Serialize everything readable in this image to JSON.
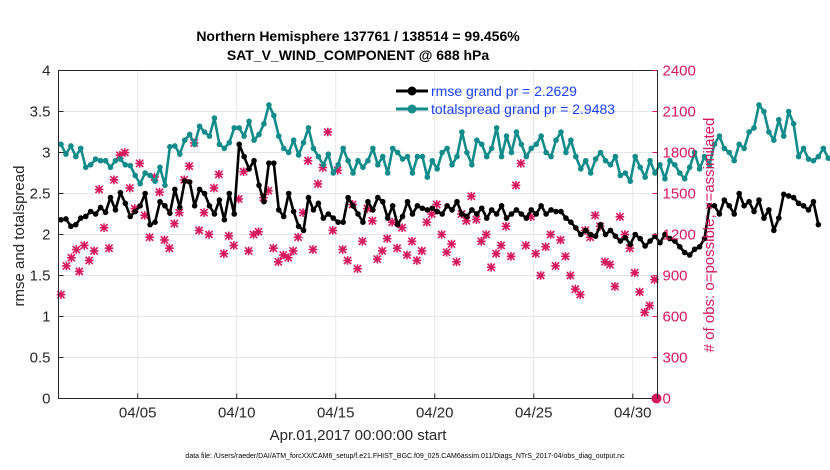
{
  "chart_data": {
    "type": "line",
    "title_line1": "Northern Hemisphere 137761 / 138514 = 99.456%",
    "title_line2": "SAT_V_WIND_COMPONENT @ 688 hPa",
    "xlabel": "Apr.01,2017 00:00:00 start",
    "ylabel_left": "rmse and totalspread",
    "ylabel_right": "# of obs: o=possible; ×=assimilated",
    "footer": "data file: /Users/raeder/DAI/ATM_forcXX/CAM6_setup/f.e21.FHIST_BGC.f09_025.CAM6assim.011/Diags_NTrS_2017-04/obs_diag_output.nc",
    "xlim": [
      1.0,
      31.25
    ],
    "ylim_left": [
      0,
      4
    ],
    "ylim_right": [
      0,
      2400
    ],
    "x_ticks": [
      5,
      10,
      15,
      20,
      25,
      30
    ],
    "x_tick_labels": [
      "04/05",
      "04/10",
      "04/15",
      "04/20",
      "04/25",
      "04/30"
    ],
    "y_ticks_left": [
      0,
      0.5,
      1,
      1.5,
      2,
      2.5,
      3,
      3.5,
      4
    ],
    "y_tick_labels_left": [
      "0",
      "0.5",
      "1",
      "1.5",
      "2",
      "2.5",
      "3",
      "3.5",
      "4"
    ],
    "y_ticks_right": [
      0,
      300,
      600,
      900,
      1200,
      1500,
      1800,
      2100,
      2400
    ],
    "y_tick_labels_right": [
      "0",
      "300",
      "600",
      "900",
      "1200",
      "1500",
      "1800",
      "2100",
      "2400"
    ],
    "grid": true,
    "legend_position": "top-right",
    "x_start": 1.125,
    "x_step": 0.25,
    "series": [
      {
        "name": "rmse grand pr = 2.2629",
        "color": "#000000",
        "axis": "left",
        "values": [
          2.18,
          2.19,
          2.1,
          2.12,
          2.2,
          2.22,
          2.28,
          2.25,
          2.33,
          2.27,
          2.45,
          2.3,
          2.51,
          2.38,
          2.22,
          2.28,
          2.35,
          2.5,
          2.12,
          2.15,
          2.4,
          2.35,
          2.26,
          2.55,
          2.33,
          2.65,
          2.64,
          2.35,
          2.55,
          2.5,
          2.35,
          2.25,
          2.42,
          2.18,
          2.5,
          2.25,
          3.1,
          2.95,
          2.8,
          2.9,
          2.6,
          2.4,
          2.87,
          2.87,
          2.3,
          2.22,
          2.5,
          2.28,
          2.1,
          2.05,
          2.45,
          2.3,
          2.38,
          2.2,
          2.25,
          2.2,
          2.15,
          2.15,
          2.45,
          2.35,
          2.25,
          2.15,
          2.4,
          2.3,
          2.45,
          2.4,
          2.2,
          2.35,
          2.12,
          2.22,
          2.4,
          2.25,
          2.35,
          2.32,
          2.3,
          2.32,
          2.28,
          2.25,
          2.35,
          2.3,
          2.4,
          2.25,
          2.22,
          2.3,
          2.25,
          2.32,
          2.2,
          2.3,
          2.25,
          2.35,
          2.2,
          2.25,
          2.3,
          2.25,
          2.2,
          2.3,
          2.25,
          2.35,
          2.25,
          2.3,
          2.28,
          2.28,
          2.2,
          2.15,
          2.08,
          2.0,
          2.05,
          2.0,
          1.98,
          2.12,
          2.0,
          2.05,
          1.98,
          1.92,
          1.96,
          1.88,
          2.0,
          1.95,
          1.86,
          1.92,
          1.98,
          1.9,
          2.0,
          1.95,
          1.92,
          1.85,
          1.78,
          1.75,
          1.82,
          1.85,
          1.95,
          2.35,
          2.35,
          2.25,
          2.42,
          2.35,
          2.25,
          2.5,
          2.35,
          2.4,
          2.28,
          2.42,
          2.2,
          2.3,
          2.05,
          2.2,
          2.49,
          2.47,
          2.45,
          2.38,
          2.35,
          2.3,
          2.4,
          2.12
        ]
      },
      {
        "name": "totalspread grand pr = 2.9483",
        "color": "#118c8a",
        "axis": "left",
        "values": [
          3.1,
          2.98,
          3.08,
          2.95,
          3.05,
          2.82,
          2.85,
          2.92,
          2.9,
          2.9,
          2.82,
          2.9,
          2.92,
          2.85,
          2.84,
          2.72,
          2.62,
          2.75,
          2.72,
          2.65,
          2.82,
          2.6,
          3.07,
          3.08,
          2.98,
          3.15,
          3.22,
          3.1,
          3.32,
          3.25,
          3.2,
          3.42,
          3.1,
          3.05,
          3.12,
          3.3,
          3.3,
          3.2,
          3.38,
          3.15,
          3.22,
          3.35,
          3.58,
          3.45,
          3.2,
          3.05,
          3.0,
          3.15,
          2.97,
          3.12,
          3.3,
          3.05,
          2.95,
          2.85,
          2.98,
          2.75,
          2.85,
          3.05,
          2.9,
          2.75,
          2.9,
          2.82,
          2.9,
          3.05,
          2.85,
          2.95,
          2.75,
          3.05,
          3.0,
          2.92,
          2.95,
          2.75,
          2.95,
          2.95,
          2.7,
          2.9,
          2.8,
          3.0,
          3.05,
          2.85,
          2.95,
          3.25,
          3.0,
          2.85,
          3.15,
          3.1,
          2.95,
          3.05,
          3.3,
          2.95,
          3.2,
          3.0,
          3.25,
          3.1,
          2.95,
          3.05,
          3.1,
          3.2,
          3.0,
          2.95,
          3.15,
          3.25,
          3.0,
          3.15,
          2.95,
          2.8,
          2.9,
          2.75,
          2.92,
          3.0,
          2.9,
          2.85,
          2.95,
          2.72,
          2.75,
          2.65,
          2.95,
          2.82,
          2.7,
          2.9,
          2.75,
          2.85,
          2.68,
          2.9,
          2.85,
          2.75,
          2.68,
          2.82,
          3.0,
          2.8,
          2.95,
          2.85,
          3.1,
          3.2,
          3.05,
          3.0,
          2.9,
          3.1,
          3.05,
          3.25,
          3.3,
          3.58,
          3.5,
          3.25,
          3.15,
          3.4,
          3.2,
          3.5,
          3.35,
          2.95,
          3.05,
          2.92,
          2.9,
          2.95,
          3.05,
          2.93
        ]
      }
    ],
    "obs_assimilated": [
      {
        "x": 1.125,
        "y": 760
      },
      {
        "x": 1.4,
        "y": 970
      },
      {
        "x": 1.65,
        "y": 1030
      },
      {
        "x": 1.9,
        "y": 1090
      },
      {
        "x": 2.05,
        "y": 930
      },
      {
        "x": 2.3,
        "y": 1120
      },
      {
        "x": 2.55,
        "y": 1010
      },
      {
        "x": 2.8,
        "y": 1080
      },
      {
        "x": 3.05,
        "y": 1530
      },
      {
        "x": 3.3,
        "y": 1250
      },
      {
        "x": 3.55,
        "y": 1100
      },
      {
        "x": 3.8,
        "y": 1600
      },
      {
        "x": 4.1,
        "y": 1780
      },
      {
        "x": 4.35,
        "y": 1800
      },
      {
        "x": 4.6,
        "y": 1540
      },
      {
        "x": 4.85,
        "y": 1390
      },
      {
        "x": 5.1,
        "y": 1720
      },
      {
        "x": 5.35,
        "y": 1340
      },
      {
        "x": 5.6,
        "y": 1180
      },
      {
        "x": 5.85,
        "y": 1620
      },
      {
        "x": 6.1,
        "y": 1510
      },
      {
        "x": 6.35,
        "y": 1160
      },
      {
        "x": 6.6,
        "y": 1100
      },
      {
        "x": 6.85,
        "y": 1280
      },
      {
        "x": 7.1,
        "y": 1360
      },
      {
        "x": 7.35,
        "y": 1600
      },
      {
        "x": 7.6,
        "y": 1700
      },
      {
        "x": 7.85,
        "y": 1870
      },
      {
        "x": 8.1,
        "y": 1230
      },
      {
        "x": 8.35,
        "y": 1360
      },
      {
        "x": 8.6,
        "y": 1200
      },
      {
        "x": 8.85,
        "y": 1540
      },
      {
        "x": 9.1,
        "y": 1640
      },
      {
        "x": 9.35,
        "y": 1060
      },
      {
        "x": 9.6,
        "y": 1190
      },
      {
        "x": 9.85,
        "y": 1120
      },
      {
        "x": 10.1,
        "y": 1460
      },
      {
        "x": 10.35,
        "y": 1660
      },
      {
        "x": 10.6,
        "y": 1080
      },
      {
        "x": 10.85,
        "y": 1200
      },
      {
        "x": 11.1,
        "y": 1220
      },
      {
        "x": 11.35,
        "y": 1470
      },
      {
        "x": 11.6,
        "y": 1520
      },
      {
        "x": 11.85,
        "y": 1100
      },
      {
        "x": 12.1,
        "y": 1000
      },
      {
        "x": 12.35,
        "y": 1050
      },
      {
        "x": 12.6,
        "y": 1030
      },
      {
        "x": 12.85,
        "y": 1080
      },
      {
        "x": 13.1,
        "y": 1180
      },
      {
        "x": 13.35,
        "y": 1360
      },
      {
        "x": 13.6,
        "y": 1740
      },
      {
        "x": 13.85,
        "y": 1090
      },
      {
        "x": 14.1,
        "y": 1570
      },
      {
        "x": 14.35,
        "y": 1690
      },
      {
        "x": 14.6,
        "y": 1950
      },
      {
        "x": 14.85,
        "y": 1230
      },
      {
        "x": 15.1,
        "y": 1670
      },
      {
        "x": 15.35,
        "y": 1090
      },
      {
        "x": 15.6,
        "y": 1010
      },
      {
        "x": 15.85,
        "y": 1420
      },
      {
        "x": 16.1,
        "y": 950
      },
      {
        "x": 16.35,
        "y": 1150
      },
      {
        "x": 16.6,
        "y": 1390
      },
      {
        "x": 16.85,
        "y": 1300
      },
      {
        "x": 17.1,
        "y": 1020
      },
      {
        "x": 17.35,
        "y": 1080
      },
      {
        "x": 17.6,
        "y": 1170
      },
      {
        "x": 17.85,
        "y": 1290
      },
      {
        "x": 18.1,
        "y": 1100
      },
      {
        "x": 18.35,
        "y": 1250
      },
      {
        "x": 18.6,
        "y": 1050
      },
      {
        "x": 18.85,
        "y": 1150
      },
      {
        "x": 19.1,
        "y": 1010
      },
      {
        "x": 19.35,
        "y": 1080
      },
      {
        "x": 19.6,
        "y": 1290
      },
      {
        "x": 19.85,
        "y": 1350
      },
      {
        "x": 20.1,
        "y": 1420
      },
      {
        "x": 20.35,
        "y": 1200
      },
      {
        "x": 20.6,
        "y": 1070
      },
      {
        "x": 20.85,
        "y": 1130
      },
      {
        "x": 21.1,
        "y": 1000
      },
      {
        "x": 21.35,
        "y": 1350
      },
      {
        "x": 21.6,
        "y": 1300
      },
      {
        "x": 21.85,
        "y": 1480
      },
      {
        "x": 22.1,
        "y": 1310
      },
      {
        "x": 22.35,
        "y": 1150
      },
      {
        "x": 22.6,
        "y": 1200
      },
      {
        "x": 22.85,
        "y": 960
      },
      {
        "x": 23.1,
        "y": 1060
      },
      {
        "x": 23.35,
        "y": 1120
      },
      {
        "x": 23.6,
        "y": 1260
      },
      {
        "x": 23.85,
        "y": 1040
      },
      {
        "x": 24.1,
        "y": 1560
      },
      {
        "x": 24.35,
        "y": 1720
      },
      {
        "x": 24.6,
        "y": 1120
      },
      {
        "x": 24.85,
        "y": 1330
      },
      {
        "x": 25.1,
        "y": 1060
      },
      {
        "x": 25.35,
        "y": 900
      },
      {
        "x": 25.6,
        "y": 1110
      },
      {
        "x": 25.85,
        "y": 1200
      },
      {
        "x": 26.1,
        "y": 970
      },
      {
        "x": 26.35,
        "y": 1160
      },
      {
        "x": 26.6,
        "y": 1040
      },
      {
        "x": 26.85,
        "y": 900
      },
      {
        "x": 27.1,
        "y": 800
      },
      {
        "x": 27.35,
        "y": 760
      },
      {
        "x": 27.6,
        "y": 1230
      },
      {
        "x": 27.85,
        "y": 1180
      },
      {
        "x": 28.1,
        "y": 1340
      },
      {
        "x": 28.35,
        "y": 1260
      },
      {
        "x": 28.6,
        "y": 1000
      },
      {
        "x": 28.85,
        "y": 980
      },
      {
        "x": 29.1,
        "y": 820
      },
      {
        "x": 29.35,
        "y": 1330
      },
      {
        "x": 29.6,
        "y": 1200
      },
      {
        "x": 29.85,
        "y": 1100
      },
      {
        "x": 30.1,
        "y": 920
      },
      {
        "x": 30.35,
        "y": 780
      },
      {
        "x": 30.6,
        "y": 630
      },
      {
        "x": 30.85,
        "y": 680
      },
      {
        "x": 31.1,
        "y": 870
      }
    ],
    "obs_possible": [
      {
        "x": 31.2,
        "y": 0
      }
    ]
  },
  "colors": {
    "rmse": "#000000",
    "spread": "#118c8a",
    "obs": "#d6175c",
    "legend_text": "#1a40ff",
    "grid": "#e6e6e6",
    "axis": "#262626"
  }
}
